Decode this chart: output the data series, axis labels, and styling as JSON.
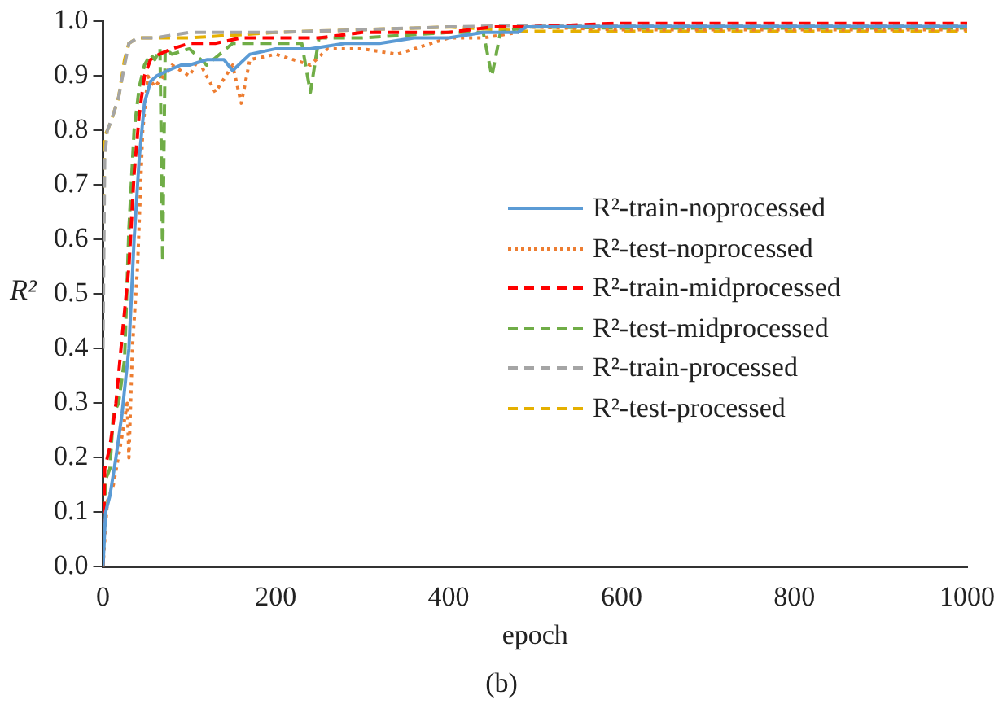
{
  "chart_data": {
    "type": "line",
    "xlabel": "epoch",
    "ylabel": "R²",
    "annotations": [
      "(b)"
    ],
    "xlim": [
      0,
      1000
    ],
    "xticks": [
      0,
      200,
      400,
      600,
      800,
      1000
    ],
    "ylim": [
      0,
      1
    ],
    "yticks": [
      {
        "value": 0,
        "label": "0.0"
      },
      0.1,
      0.2,
      0.3,
      0.4,
      0.5,
      0.6,
      0.7,
      0.8,
      0.9,
      {
        "value": 1,
        "label": "1.0"
      }
    ],
    "grid": false,
    "legend": "right",
    "marker": "none",
    "series": [
      {
        "name": "R²-train-noprocessed",
        "color": "#5b9bd5",
        "line_style": "solid",
        "x": [
          0,
          3,
          8,
          15,
          22,
          30,
          36,
          42,
          48,
          55,
          62,
          75,
          90,
          100,
          120,
          140,
          150,
          170,
          200,
          240,
          280,
          320,
          360,
          400,
          440,
          480,
          490,
          600,
          800,
          1000
        ],
        "values": [
          0.0,
          0.1,
          0.13,
          0.2,
          0.28,
          0.4,
          0.6,
          0.75,
          0.85,
          0.89,
          0.9,
          0.91,
          0.92,
          0.92,
          0.93,
          0.93,
          0.91,
          0.94,
          0.95,
          0.95,
          0.96,
          0.96,
          0.97,
          0.97,
          0.98,
          0.98,
          0.99,
          0.991,
          0.991,
          0.991
        ]
      },
      {
        "name": "R²-test-noprocessed",
        "color": "#ed7d31",
        "line_style": "dotted",
        "x": [
          0,
          5,
          12,
          20,
          28,
          30,
          34,
          40,
          46,
          52,
          60,
          70,
          80,
          100,
          110,
          130,
          150,
          160,
          170,
          200,
          240,
          260,
          300,
          340,
          380,
          400,
          440,
          480,
          490,
          600,
          800,
          1000
        ],
        "values": [
          0.0,
          0.12,
          0.15,
          0.22,
          0.3,
          0.2,
          0.4,
          0.55,
          0.8,
          0.9,
          0.88,
          0.9,
          0.92,
          0.9,
          0.93,
          0.87,
          0.92,
          0.85,
          0.93,
          0.94,
          0.92,
          0.95,
          0.95,
          0.94,
          0.96,
          0.97,
          0.97,
          0.98,
          0.99,
          0.985,
          0.985,
          0.985
        ]
      },
      {
        "name": "R²-train-midprocessed",
        "color": "#ff0000",
        "line_style": "dashed",
        "x": [
          0,
          2,
          8,
          15,
          22,
          30,
          36,
          42,
          48,
          55,
          65,
          80,
          100,
          130,
          160,
          200,
          250,
          300,
          350,
          400,
          450,
          490,
          600,
          800,
          1000
        ],
        "values": [
          0.0,
          0.18,
          0.22,
          0.3,
          0.42,
          0.55,
          0.72,
          0.83,
          0.9,
          0.93,
          0.94,
          0.95,
          0.96,
          0.96,
          0.97,
          0.97,
          0.97,
          0.98,
          0.98,
          0.98,
          0.99,
          0.99,
          0.997,
          0.997,
          0.997
        ]
      },
      {
        "name": "R²-test-midprocessed",
        "color": "#70ad47",
        "line_style": "dashed",
        "x": [
          0,
          3,
          8,
          12,
          18,
          25,
          30,
          36,
          42,
          48,
          55,
          60,
          66,
          69,
          72,
          80,
          100,
          120,
          150,
          200,
          230,
          240,
          250,
          300,
          400,
          440,
          450,
          460,
          490,
          600,
          800,
          1000
        ],
        "values": [
          0.0,
          0.16,
          0.18,
          0.28,
          0.3,
          0.38,
          0.62,
          0.8,
          0.88,
          0.92,
          0.94,
          0.93,
          0.95,
          0.56,
          0.95,
          0.94,
          0.95,
          0.92,
          0.96,
          0.96,
          0.96,
          0.87,
          0.97,
          0.97,
          0.98,
          0.98,
          0.9,
          0.98,
          0.99,
          0.988,
          0.988,
          0.988
        ]
      },
      {
        "name": "R²-train-processed",
        "color": "#a5a5a5",
        "line_style": "dashed",
        "x": [
          0,
          2,
          5,
          10,
          18,
          25,
          30,
          40,
          60,
          100,
          200,
          300,
          400,
          490,
          600,
          800,
          1000
        ],
        "values": [
          0.4,
          0.75,
          0.8,
          0.82,
          0.86,
          0.92,
          0.96,
          0.97,
          0.97,
          0.98,
          0.98,
          0.985,
          0.99,
          0.993,
          0.993,
          0.993,
          0.993
        ]
      },
      {
        "name": "R²-test-processed",
        "color": "#e5b000",
        "line_style": "dashed",
        "x": [
          0,
          2,
          5,
          10,
          18,
          25,
          30,
          40,
          60,
          100,
          150,
          200,
          300,
          400,
          490,
          600,
          800,
          1000
        ],
        "values": [
          0.63,
          0.79,
          0.8,
          0.82,
          0.86,
          0.93,
          0.96,
          0.97,
          0.97,
          0.97,
          0.975,
          0.98,
          0.985,
          0.99,
          0.982,
          0.982,
          0.982,
          0.982
        ]
      }
    ]
  }
}
